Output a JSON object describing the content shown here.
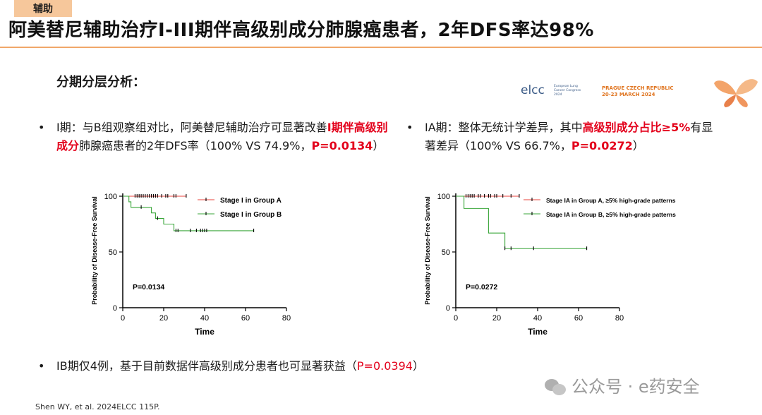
{
  "tag": "辅助",
  "title": "阿美替尼辅助治疗I-III期伴高级别成分肺腺癌患者，2年DFS率达98%",
  "subhead": "分期分层分析：",
  "bullets": {
    "b1": {
      "dot": "•",
      "pre": "I期：与B组观察组对比，阿美替尼辅助治疗可显著改善",
      "hl": "I期伴高级别成分",
      "mid": "肺腺癌患者的2年DFS率（100% VS 74.9%，",
      "p": "P=0.0134",
      "post": "）"
    },
    "b2": {
      "dot": "•",
      "pre": "IA期：整体无统计学差异，其中",
      "hl": "高级别成分占比≥5%",
      "mid": "有显著差异（100% VS 66.7%，",
      "p": "P=0.0272",
      "post": "）"
    },
    "b3": {
      "dot": "•",
      "pre": "IB期仅4例，基于目前数据伴高级别成分患者也可显著获益（",
      "p": "P=0.0394",
      "post": "）"
    }
  },
  "conference": {
    "name": "elcc",
    "sub": "European Lung Cancer Congress 2024",
    "city": "PRAGUE CZECH REPUBLIC",
    "dates": "20-23 MARCH 2024"
  },
  "reference": "Shen WY, et al. 2024ELCC 115P.",
  "watermark": "公众号 · e药安全",
  "chart_data": [
    {
      "type": "line",
      "step": true,
      "xlabel": "Time",
      "ylabel": "Probability of Disease-Free Survival",
      "xlim": [
        0,
        80
      ],
      "ylim": [
        0,
        100
      ],
      "xticks": [
        0,
        20,
        40,
        60,
        80
      ],
      "yticks": [
        0,
        50,
        100
      ],
      "annotation": "P=0.0134",
      "legend_position": "top-right",
      "colors": {
        "A": "#e8433c",
        "B": "#3aa63a"
      },
      "series": [
        {
          "name": "Stage I in Group A",
          "x": [
            0,
            31
          ],
          "y": [
            100,
            100
          ],
          "censored": [
            6,
            7,
            8,
            9,
            10,
            11,
            12,
            13,
            14,
            15,
            16,
            17,
            19,
            21,
            22,
            25,
            26,
            31
          ]
        },
        {
          "name": "Stage I in Group B",
          "x": [
            0,
            3,
            4,
            14,
            16,
            20,
            22,
            25,
            64
          ],
          "y": [
            100,
            95,
            90,
            85,
            80,
            75,
            75,
            69,
            69
          ],
          "censored": [
            9,
            17,
            26,
            27,
            33,
            36,
            38,
            39,
            40,
            41,
            64
          ]
        }
      ]
    },
    {
      "type": "line",
      "step": true,
      "xlabel": "Time",
      "ylabel": "Probability of Disease-Free Survival",
      "xlim": [
        0,
        80
      ],
      "ylim": [
        0,
        100
      ],
      "xticks": [
        0,
        20,
        40,
        60,
        80
      ],
      "yticks": [
        0,
        50,
        100
      ],
      "annotation": "P=0.0272",
      "legend_position": "top-right",
      "colors": {
        "A": "#e8433c",
        "B": "#3aa63a"
      },
      "series": [
        {
          "name": "Stage IA in Group A, ≥5% high-grade patterns",
          "x": [
            0,
            31
          ],
          "y": [
            100,
            100
          ],
          "censored": [
            5,
            6,
            7,
            8,
            9,
            11,
            12,
            14,
            16,
            17,
            19,
            20,
            23,
            27,
            31
          ]
        },
        {
          "name": "Stage IA in Group B, ≥5% high-grade patterns",
          "x": [
            0,
            4,
            14,
            16,
            24,
            27,
            64
          ],
          "y": [
            100,
            89,
            89,
            67,
            53,
            53,
            53
          ],
          "censored": [
            24,
            27,
            38,
            64
          ]
        }
      ]
    }
  ]
}
